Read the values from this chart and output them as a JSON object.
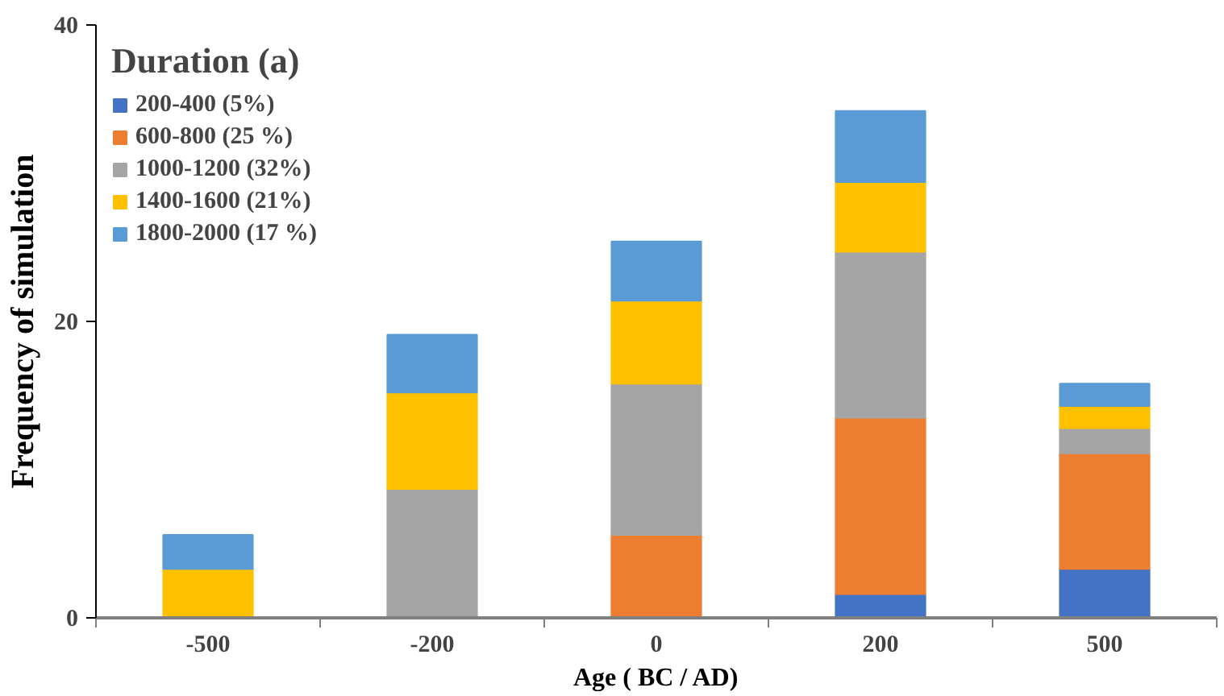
{
  "chart_data": {
    "type": "bar",
    "stacked": true,
    "xlabel": "Age ( BC / AD)",
    "ylabel": "Frequency of simulation",
    "legend_title": "Duration (a)",
    "categories": [
      "-500",
      "-200",
      "0",
      "200",
      "500"
    ],
    "series": [
      {
        "name": "200-400 (5%)",
        "color": "#4472c4",
        "values": [
          0,
          0,
          0,
          1.6,
          3.3
        ]
      },
      {
        "name": "600-800 (25 %)",
        "color": "#ed7d31",
        "values": [
          0,
          0,
          5.6,
          11.9,
          7.8
        ]
      },
      {
        "name": "1000-1200 (32%)",
        "color": "#a5a5a5",
        "values": [
          0,
          8.7,
          10.2,
          11.2,
          1.7
        ]
      },
      {
        "name": "1400-1600 (21%)",
        "color": "#ffc000",
        "values": [
          3.3,
          6.5,
          5.6,
          4.7,
          1.5
        ]
      },
      {
        "name": "1800-2000 (17 %)",
        "color": "#5b9bd5",
        "values": [
          2.3,
          3.9,
          4.0,
          4.8,
          1.5
        ]
      }
    ],
    "ylim": [
      0,
      40
    ],
    "yticks": [
      0,
      20,
      40
    ],
    "grid": false,
    "legend": "top left"
  }
}
